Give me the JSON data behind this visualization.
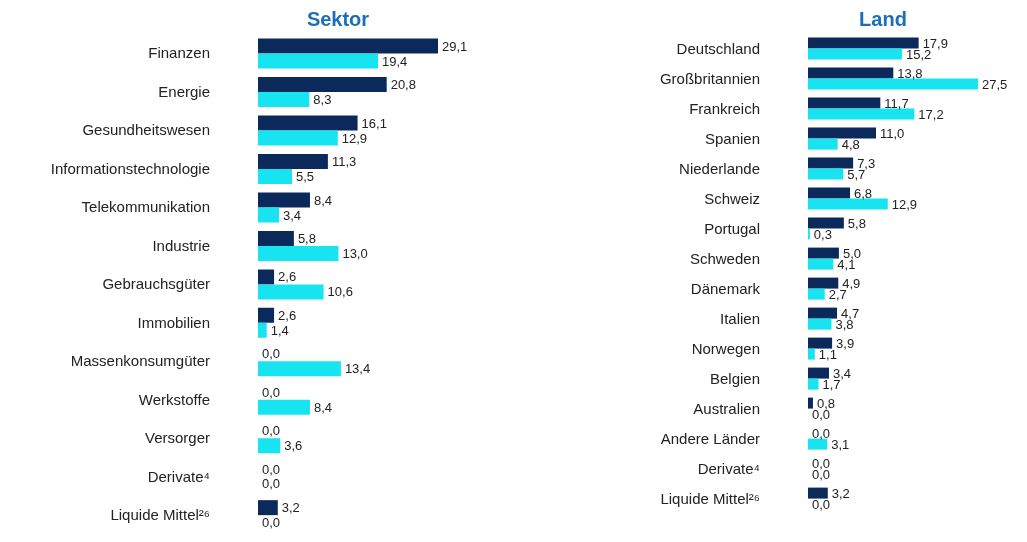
{
  "chart_data": [
    {
      "type": "bar",
      "title": "Sektor",
      "orientation": "horizontal",
      "categories": [
        "Finanzen",
        "Energie",
        "Gesundheitswesen",
        "Informationstechnologie",
        "Telekommunikation",
        "Industrie",
        "Gebrauchsgüter",
        "Immobilien",
        "Massenkonsumgüter",
        "Werkstoffe",
        "Versorger",
        "Derivate⁴",
        "Liquide Mittel²⁶"
      ],
      "series": [
        {
          "color": "#0b2a5b",
          "values": [
            29.1,
            20.8,
            16.1,
            11.3,
            8.4,
            5.8,
            2.6,
            2.6,
            0,
            0,
            0,
            0,
            3.2
          ],
          "value_labels": [
            "29,1",
            "20,8",
            "16,1",
            "11,3",
            "8,4",
            "5,8",
            "2,6",
            "2,6",
            "0,0",
            "0,0",
            "0,0",
            "0,0",
            "3,2"
          ]
        },
        {
          "color": "#18e3f0",
          "values": [
            19.4,
            8.3,
            12.9,
            5.5,
            3.4,
            13.0,
            10.6,
            1.4,
            13.4,
            8.4,
            3.6,
            0,
            0
          ],
          "value_labels": [
            "19,4",
            "8,3",
            "12,9",
            "5,5",
            "3,4",
            "13,0",
            "10,6",
            "1,4",
            "13,4",
            "8,4",
            "3,6",
            "0,0",
            "0,0"
          ]
        }
      ],
      "legend": false,
      "grid": false
    },
    {
      "type": "bar",
      "title": "Land",
      "orientation": "horizontal",
      "categories": [
        "Deutschland",
        "Großbritannien",
        "Frankreich",
        "Spanien",
        "Niederlande",
        "Schweiz",
        "Portugal",
        "Schweden",
        "Dänemark",
        "Italien",
        "Norwegen",
        "Belgien",
        "Australien",
        "Andere Länder",
        "Derivate⁴",
        "Liquide Mittel²⁶"
      ],
      "series": [
        {
          "color": "#0b2a5b",
          "values": [
            17.9,
            13.8,
            11.7,
            11.0,
            7.3,
            6.8,
            5.8,
            5.0,
            4.9,
            4.7,
            3.9,
            3.4,
            0.8,
            0,
            0,
            3.2
          ],
          "value_labels": [
            "17,9",
            "13,8",
            "11,7",
            "11,0",
            "7,3",
            "6,8",
            "5,8",
            "5,0",
            "4,9",
            "4,7",
            "3,9",
            "3,4",
            "0,8",
            "0,0",
            "0,0",
            "3,2"
          ]
        },
        {
          "color": "#18e3f0",
          "values": [
            15.2,
            27.5,
            17.2,
            4.8,
            5.7,
            12.9,
            0.3,
            4.1,
            2.7,
            3.8,
            1.1,
            1.7,
            0,
            3.1,
            0,
            0
          ],
          "value_labels": [
            "15,2",
            "27,5",
            "17,2",
            "4,8",
            "5,7",
            "12,9",
            "0,3",
            "4,1",
            "2,7",
            "3,8",
            "1,1",
            "1,7",
            "0,0",
            "3,1",
            "0,0",
            "0,0"
          ]
        }
      ],
      "legend": false,
      "grid": false
    }
  ]
}
